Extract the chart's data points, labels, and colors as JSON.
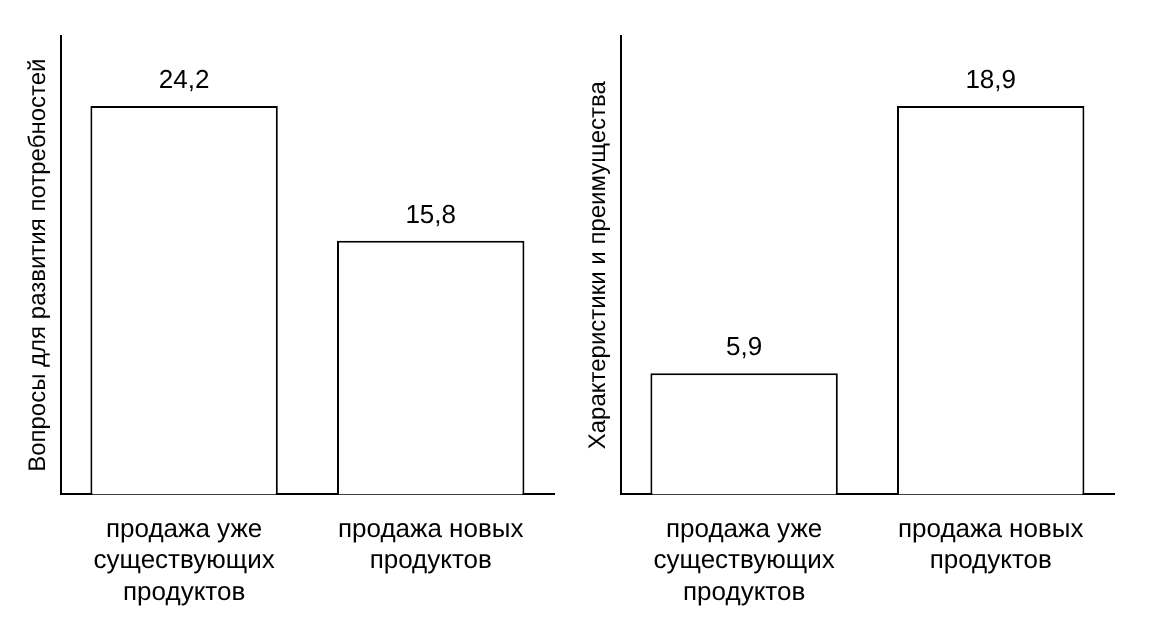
{
  "chart_data": [
    {
      "type": "bar",
      "ylabel": "Вопросы для развития потребностей",
      "categories": [
        "продажа уже существующих продуктов",
        "продажа новых продуктов"
      ],
      "values": [
        24.2,
        15.8
      ],
      "value_labels": [
        "24,2",
        "15,8"
      ],
      "color": "#ffffff",
      "grid": false,
      "legend": false
    },
    {
      "type": "bar",
      "ylabel": "Характеристики и преимущества",
      "categories": [
        "продажа уже существующих продуктов",
        "продажа новых продуктов"
      ],
      "values": [
        5.9,
        18.9
      ],
      "value_labels": [
        "5,9",
        "18,9"
      ],
      "color": "#ffffff",
      "grid": false,
      "legend": false
    }
  ]
}
